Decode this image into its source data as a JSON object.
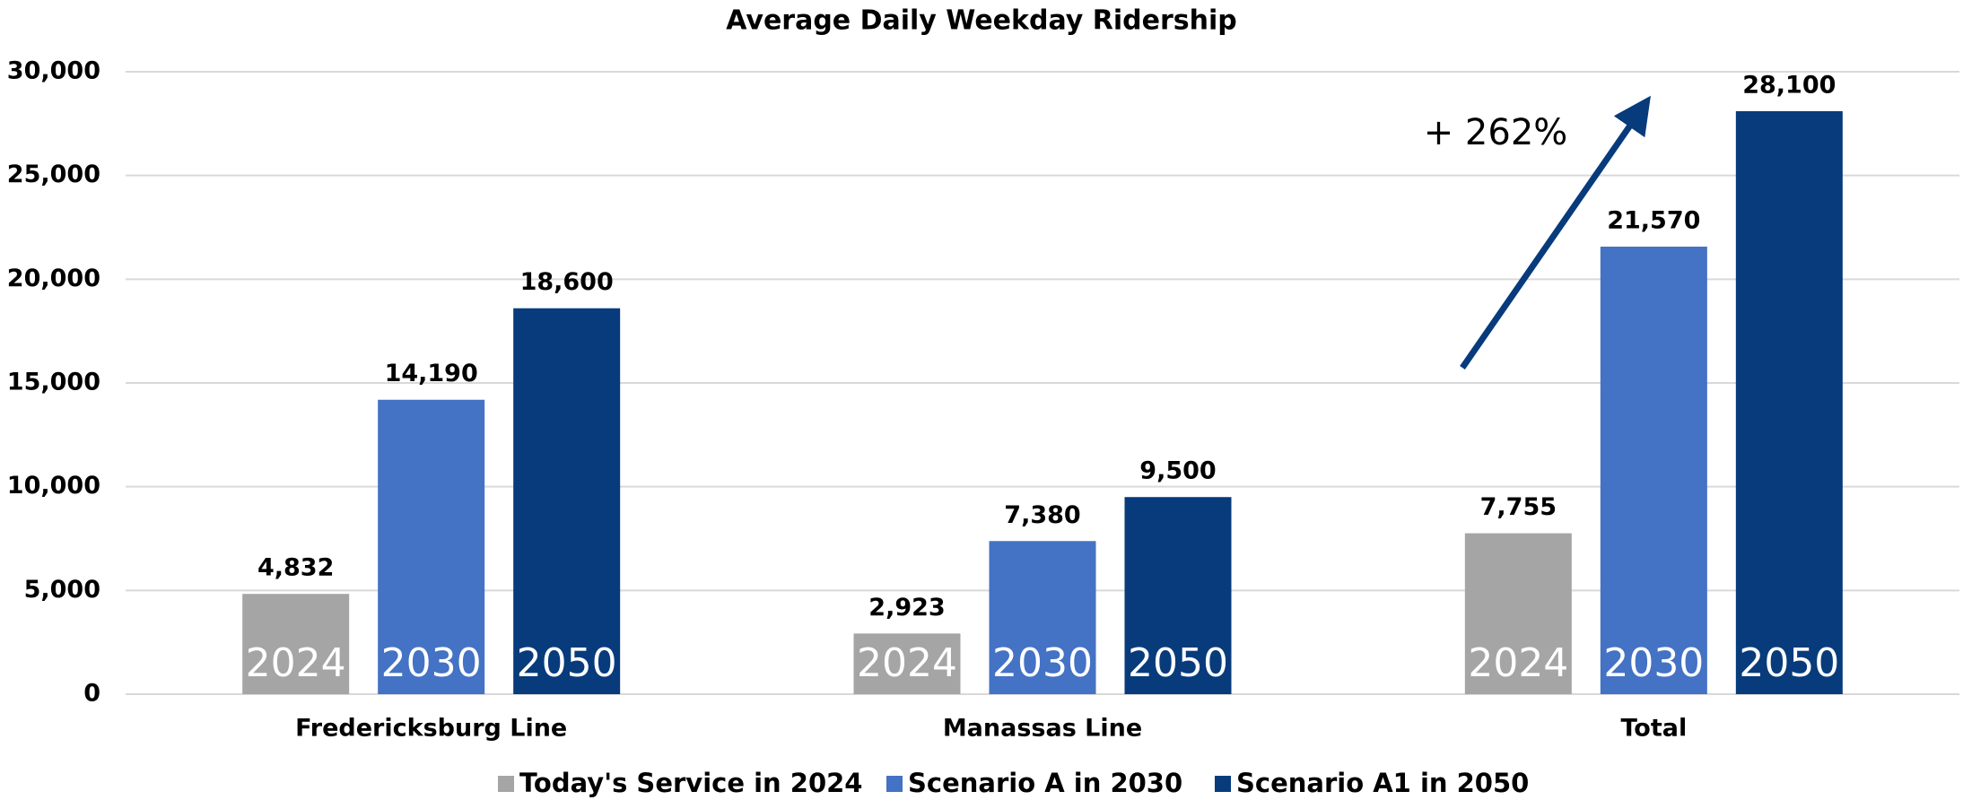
{
  "chart_data": {
    "type": "bar",
    "title": "Average Daily Weekday Ridership",
    "categories": [
      "Fredericksburg Line",
      "Manassas Line",
      "Total"
    ],
    "series": [
      {
        "name": "Today's Service in 2024",
        "color": "#a5a5a5",
        "bar_label": "2024",
        "values": [
          4832,
          2923,
          7755
        ],
        "value_labels": [
          "4,832",
          "2,923",
          "7,755"
        ]
      },
      {
        "name": "Scenario A in 2030",
        "color": "#4472c4",
        "bar_label": "2030",
        "values": [
          14190,
          7380,
          21570
        ],
        "value_labels": [
          "14,190",
          "7,380",
          "21,570"
        ]
      },
      {
        "name": "Scenario A1 in 2050",
        "color": "#073b7c",
        "bar_label": "2050",
        "values": [
          18600,
          9500,
          28100
        ],
        "value_labels": [
          "18,600",
          "9,500",
          "28,100"
        ]
      }
    ],
    "ylim": [
      0,
      30000
    ],
    "yticks": [
      0,
      {
        "value": 5000,
        "label": "5,000"
      },
      {
        "value": 10000,
        "label": "10,000"
      },
      {
        "value": 15000,
        "label": "15,000"
      },
      {
        "value": 20000,
        "label": "20,000"
      },
      {
        "value": 25000,
        "label": "25,000"
      },
      {
        "value": 30000,
        "label": "30,000"
      }
    ],
    "grid": true,
    "legend": "bottom",
    "annotation": "+ 262%"
  }
}
